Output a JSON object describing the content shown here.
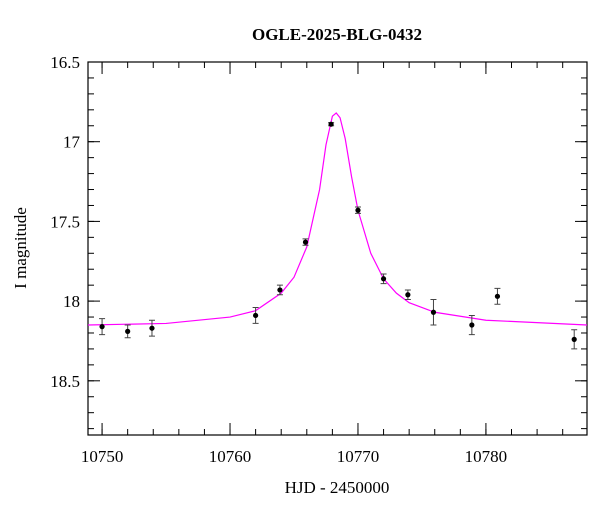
{
  "chart_data": {
    "type": "scatter",
    "title": "OGLE-2025-BLG-0432",
    "x_label": "HJD - 2450000",
    "y_label": "I magnitude",
    "xlim": [
      10748.9,
      10787.9
    ],
    "ylim": [
      16.5,
      18.84
    ],
    "y_inverted": true,
    "xticks": [
      10750,
      10760,
      10770,
      10780
    ],
    "yticks": [
      16.5,
      17,
      17.5,
      18,
      18.5
    ],
    "observations": {
      "color": "#000000",
      "x": [
        10750.0,
        10752.0,
        10753.9,
        10762.0,
        10763.9,
        10765.9,
        10767.9,
        10770.0,
        10772.0,
        10773.9,
        10775.9,
        10778.9,
        10780.9,
        10786.9
      ],
      "values": [
        18.16,
        18.19,
        18.17,
        18.09,
        17.93,
        17.63,
        16.89,
        17.43,
        17.86,
        17.96,
        18.07,
        18.15,
        17.97,
        18.24
      ],
      "errors": [
        0.05,
        0.04,
        0.05,
        0.05,
        0.03,
        0.02,
        0.01,
        0.02,
        0.03,
        0.03,
        0.08,
        0.06,
        0.05,
        0.06
      ]
    },
    "model": {
      "type": "line",
      "color": "#ff00ff",
      "x": [
        10748.9,
        10755,
        10760,
        10762,
        10764,
        10765,
        10766,
        10767,
        10767.5,
        10768,
        10768.3,
        10768.6,
        10769,
        10769.5,
        10770,
        10771,
        10772,
        10773,
        10774,
        10776,
        10780,
        10787.9
      ],
      "values": [
        18.15,
        18.14,
        18.1,
        18.06,
        17.95,
        17.85,
        17.66,
        17.3,
        17.02,
        16.84,
        16.82,
        16.85,
        16.98,
        17.22,
        17.43,
        17.7,
        17.86,
        17.95,
        18.01,
        18.07,
        18.12,
        18.15
      ]
    }
  }
}
